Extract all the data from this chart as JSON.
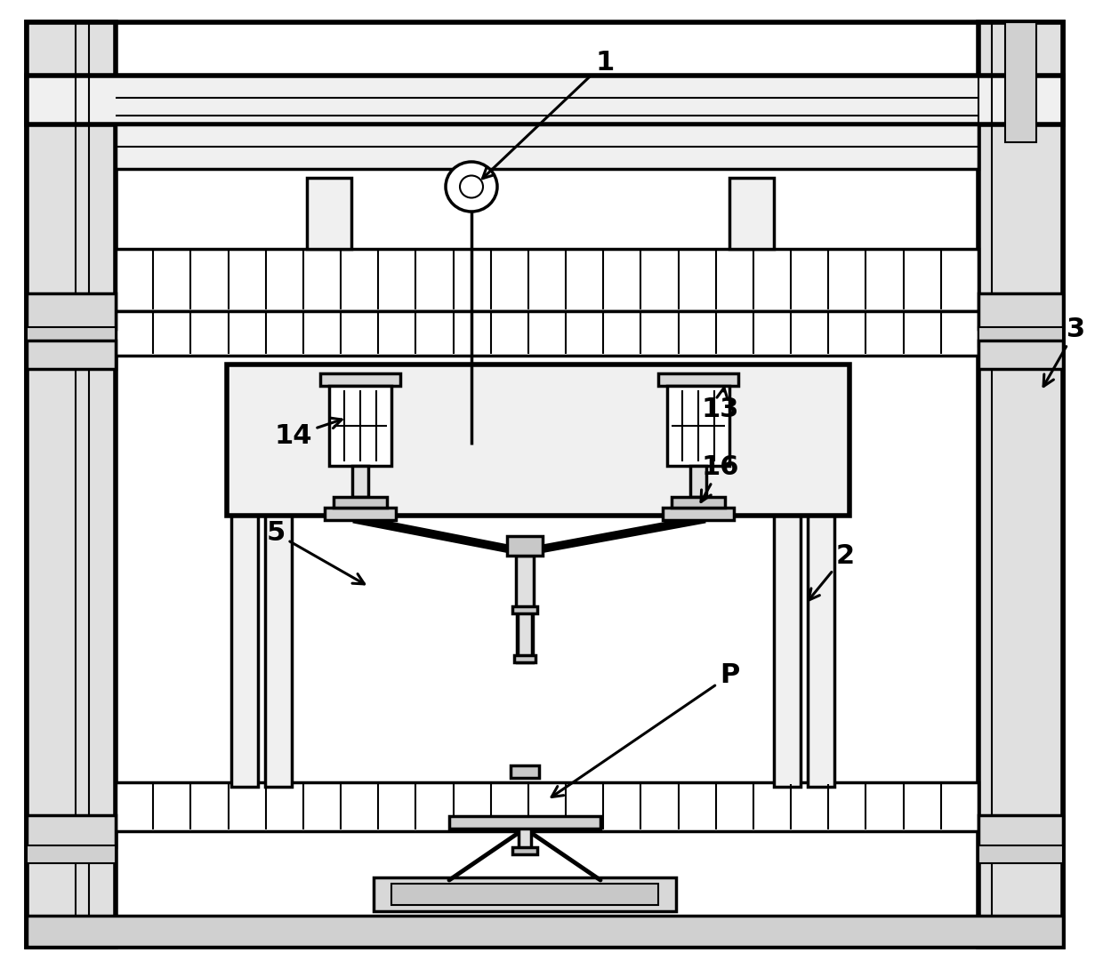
{
  "bg_color": "#ffffff",
  "line_color": "#000000",
  "lw_thick": 4.0,
  "lw_med": 2.5,
  "lw_thin": 1.5,
  "lw_vthin": 0.8,
  "fig_width": 12.4,
  "fig_height": 10.9,
  "label_fontsize": 22,
  "label_fontweight": "bold"
}
